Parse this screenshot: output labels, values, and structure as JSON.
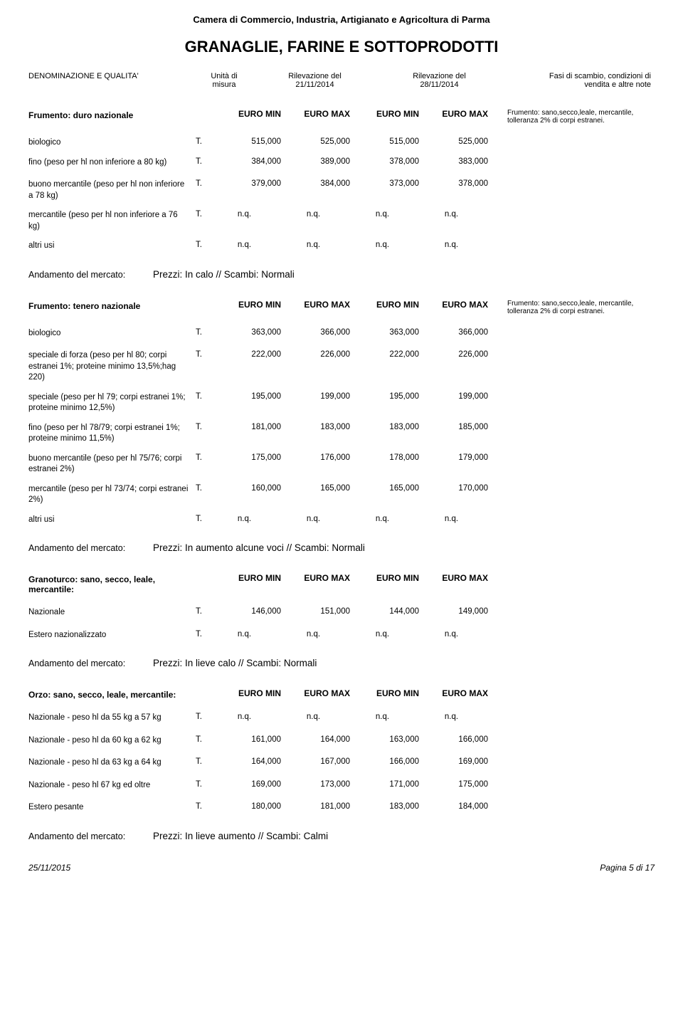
{
  "header": {
    "organization": "Camera di Commercio, Industria, Artigianato e Agricoltura di Parma",
    "title": "GRANAGLIE, FARINE E SOTTOPRODOTTI"
  },
  "columnHeaders": {
    "denomination": "DENOMINAZIONE E QUALITA'",
    "unit_line1": "Unità di",
    "unit_line2": "misura",
    "date1_line1": "Rilevazione del",
    "date1_line2": "21/11/2014",
    "date2_line1": "Rilevazione del",
    "date2_line2": "28/11/2014",
    "conditions_line1": "Fasi di scambio, condizioni di",
    "conditions_line2": "vendita e altre note"
  },
  "euroLabels": {
    "min": "EURO MIN",
    "max": "EURO MAX"
  },
  "andamentoLabel": "Andamento del mercato:",
  "sections": [
    {
      "title": "Frumento: duro nazionale",
      "note": "Frumento: sano,secco,leale, mercantile,\ntolleranza 2% di corpi estranei.",
      "rows": [
        {
          "label": "biologico",
          "unit": "T.",
          "v1": "515,000",
          "v2": "525,000",
          "v3": "515,000",
          "v4": "525,000"
        },
        {
          "label": "fino (peso per hl non inferiore a 80 kg)",
          "unit": "T.",
          "v1": "384,000",
          "v2": "389,000",
          "v3": "378,000",
          "v4": "383,000",
          "spaced": true
        },
        {
          "label": "buono mercantile (peso per hl non inferiore a 78 kg)",
          "unit": "T.",
          "v1": "379,000",
          "v2": "384,000",
          "v3": "373,000",
          "v4": "378,000"
        },
        {
          "label": "mercantile (peso per hl non inferiore a 76 kg)",
          "unit": "T.",
          "v1": "n.q.",
          "v2": "n.q.",
          "v3": "n.q.",
          "v4": "n.q.",
          "nq": true
        },
        {
          "label": "altri usi",
          "unit": "T.",
          "v1": "n.q.",
          "v2": "n.q.",
          "v3": "n.q.",
          "v4": "n.q.",
          "nq": true
        }
      ],
      "andamento": "Prezzi: In calo //  Scambi: Normali"
    },
    {
      "title": "Frumento: tenero nazionale",
      "note": "Frumento: sano,secco,leale, mercantile,\ntolleranza 2% di corpi estranei.",
      "rows": [
        {
          "label": "biologico",
          "unit": "T.",
          "v1": "363,000",
          "v2": "366,000",
          "v3": "363,000",
          "v4": "366,000",
          "spaced": true
        },
        {
          "label": "speciale di forza (peso per hl 80; corpi estranei 1%; proteine minimo 13,5%;hag 220)",
          "unit": "T.",
          "v1": "222,000",
          "v2": "226,000",
          "v3": "222,000",
          "v4": "226,000"
        },
        {
          "label": "speciale (peso per hl 79; corpi estranei 1%; proteine minimo 12,5%)",
          "unit": "T.",
          "v1": "195,000",
          "v2": "199,000",
          "v3": "195,000",
          "v4": "199,000"
        },
        {
          "label": "fino (peso per hl 78/79; corpi estranei 1%; proteine minimo 11,5%)",
          "unit": "T.",
          "v1": "181,000",
          "v2": "183,000",
          "v3": "183,000",
          "v4": "185,000"
        },
        {
          "label": "buono mercantile (peso per hl 75/76; corpi estranei 2%)",
          "unit": "T.",
          "v1": "175,000",
          "v2": "176,000",
          "v3": "178,000",
          "v4": "179,000"
        },
        {
          "label": "mercantile (peso per hl 73/74; corpi estranei 2%)",
          "unit": "T.",
          "v1": "160,000",
          "v2": "165,000",
          "v3": "165,000",
          "v4": "170,000"
        },
        {
          "label": "altri usi",
          "unit": "T.",
          "v1": "n.q.",
          "v2": "n.q.",
          "v3": "n.q.",
          "v4": "n.q.",
          "nq": true
        }
      ],
      "andamento": "Prezzi: In aumento alcune voci // Scambi: Normali"
    },
    {
      "title": "Granoturco: sano, secco, leale, mercantile:",
      "note": "",
      "rows": [
        {
          "label": "Nazionale",
          "unit": "T.",
          "v1": "146,000",
          "v2": "151,000",
          "v3": "144,000",
          "v4": "149,000",
          "spaced": true
        },
        {
          "label": "Estero nazionalizzato",
          "unit": "T.",
          "v1": "n.q.",
          "v2": "n.q.",
          "v3": "n.q.",
          "v4": "n.q.",
          "nq": true
        }
      ],
      "andamento": "Prezzi: In lieve calo //  Scambi: Normali"
    },
    {
      "title": "Orzo: sano, secco, leale, mercantile:",
      "note": "",
      "rows": [
        {
          "label": "Nazionale - peso hl da 55 kg a 57 kg",
          "unit": "T.",
          "v1": "n.q.",
          "v2": "n.q.",
          "v3": "n.q.",
          "v4": "n.q.",
          "nq": true,
          "spaced": true
        },
        {
          "label": "Nazionale - peso hl da 60 kg a 62 kg",
          "unit": "T.",
          "v1": "161,000",
          "v2": "164,000",
          "v3": "163,000",
          "v4": "166,000",
          "spaced": true
        },
        {
          "label": "Nazionale - peso hl da 63 kg a 64 kg",
          "unit": "T.",
          "v1": "164,000",
          "v2": "167,000",
          "v3": "166,000",
          "v4": "169,000",
          "spaced": true
        },
        {
          "label": "Nazionale - peso hl 67 kg ed oltre",
          "unit": "T.",
          "v1": "169,000",
          "v2": "173,000",
          "v3": "171,000",
          "v4": "175,000",
          "spaced": true
        },
        {
          "label": "Estero pesante",
          "unit": "T.",
          "v1": "180,000",
          "v2": "181,000",
          "v3": "183,000",
          "v4": "184,000"
        }
      ],
      "andamento": "Prezzi: In lieve aumento // Scambi: Calmi"
    }
  ],
  "footer": {
    "date": "25/11/2015",
    "page": "Pagina 5 di 17"
  }
}
